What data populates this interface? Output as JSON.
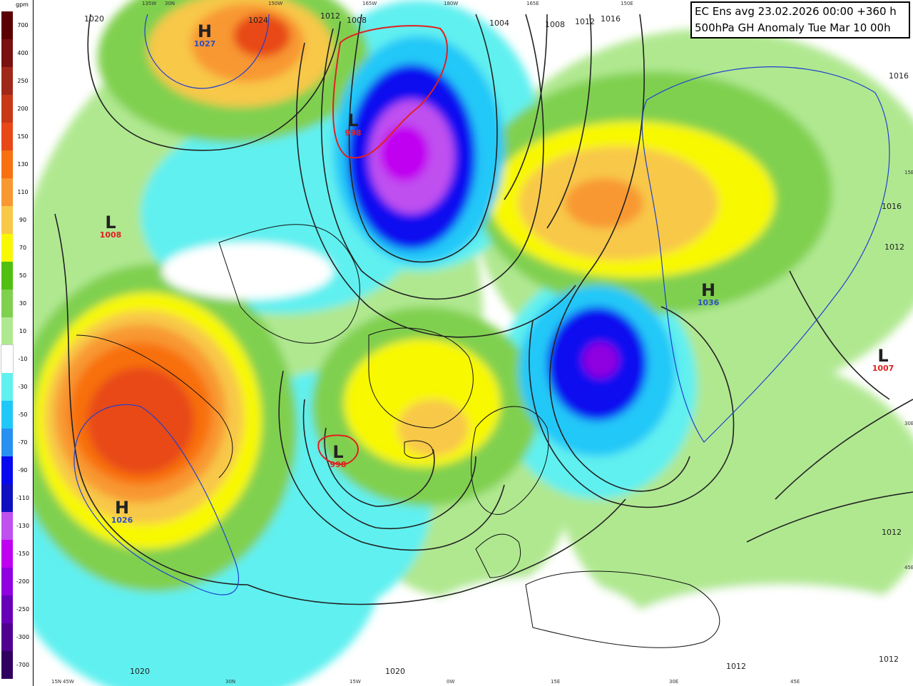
{
  "title": {
    "line1": "EC Ens avg 23.02.2026 00:00 +360 h",
    "line2": "500hPa GH Anomaly Tue Mar 10 00h"
  },
  "legend": {
    "unit": "gpm",
    "labels": [
      "700",
      "400",
      "250",
      "200",
      "150",
      "130",
      "110",
      "90",
      "70",
      "50",
      "30",
      "10",
      "-10",
      "-30",
      "-50",
      "-70",
      "-90",
      "-110",
      "-130",
      "-150",
      "-200",
      "-250",
      "-300",
      "-700"
    ],
    "colors": [
      "#5a0000",
      "#7a1010",
      "#a02818",
      "#c83818",
      "#e84818",
      "#f87010",
      "#f89830",
      "#f8c848",
      "#f8f800",
      "#50c010",
      "#80d050",
      "#b0e890",
      "#ffffff",
      "#60f0f0",
      "#20c8f8",
      "#2890f0",
      "#0808f0",
      "#1010c0",
      "#c050f0",
      "#c000f0",
      "#9000e0",
      "#6800b8",
      "#500090",
      "#300060"
    ]
  },
  "pressure_centers": [
    {
      "type": "H",
      "value": "1027",
      "color": "#3050c0"
    },
    {
      "type": "L",
      "value": "1008",
      "color": "#e02020"
    },
    {
      "type": "L",
      "value": "998",
      "color": "#e02020"
    },
    {
      "type": "L",
      "value": "998",
      "color": "#e02020"
    },
    {
      "type": "H",
      "value": "1026",
      "color": "#3050c0"
    },
    {
      "type": "H",
      "value": "1036",
      "color": "#3050c0"
    },
    {
      "type": "L",
      "value": "1007",
      "color": "#e02020"
    }
  ],
  "isobar_labels": [
    "1020",
    "1024",
    "1012",
    "1008",
    "1004",
    "1008",
    "1012",
    "1016",
    "1016",
    "1016",
    "1012",
    "1012",
    "1020",
    "1020",
    "1012",
    "1012"
  ],
  "longitude_labels": [
    "135W",
    "30N",
    "150W",
    "165W",
    "180W",
    "165E",
    "150E",
    "15N",
    "45W",
    "30N",
    "15W",
    "0W",
    "15E",
    "30E",
    "45E"
  ],
  "edge_labels": [
    "15E",
    "30E",
    "45E"
  ]
}
